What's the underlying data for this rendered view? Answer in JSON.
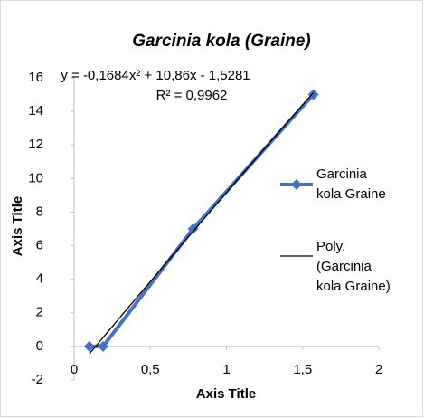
{
  "chart_data": {
    "type": "scatter",
    "title": "Garcinia kola (Graine)",
    "x_label": "Axis Title",
    "y_label": "Axis Title",
    "series": [
      {
        "name": "Garcinia kola Graine",
        "color": "#4472c4",
        "x": [
          0.1,
          0.19,
          0.78,
          1.57
        ],
        "values": [
          0,
          0,
          7,
          15
        ]
      }
    ],
    "trendline": {
      "name": "Poly. (Garcinia kola Graine)",
      "color": "#000000",
      "equation": "y = -0,1684x² + 10,86x - 1,5281",
      "r2": "R² = 0,9962",
      "coefficients": [
        -0.1684,
        10.86,
        -1.5281
      ]
    },
    "xlim": [
      0,
      2
    ],
    "xticks": [
      0,
      {
        "value": 0.5,
        "label": "0,5"
      },
      1,
      {
        "value": 1.5,
        "label": "1,5"
      },
      2
    ],
    "ylim": [
      -2,
      16
    ],
    "yticks": [
      -2,
      0,
      2,
      4,
      6,
      8,
      10,
      12,
      14,
      16
    ],
    "grid": false,
    "legend": "right"
  }
}
